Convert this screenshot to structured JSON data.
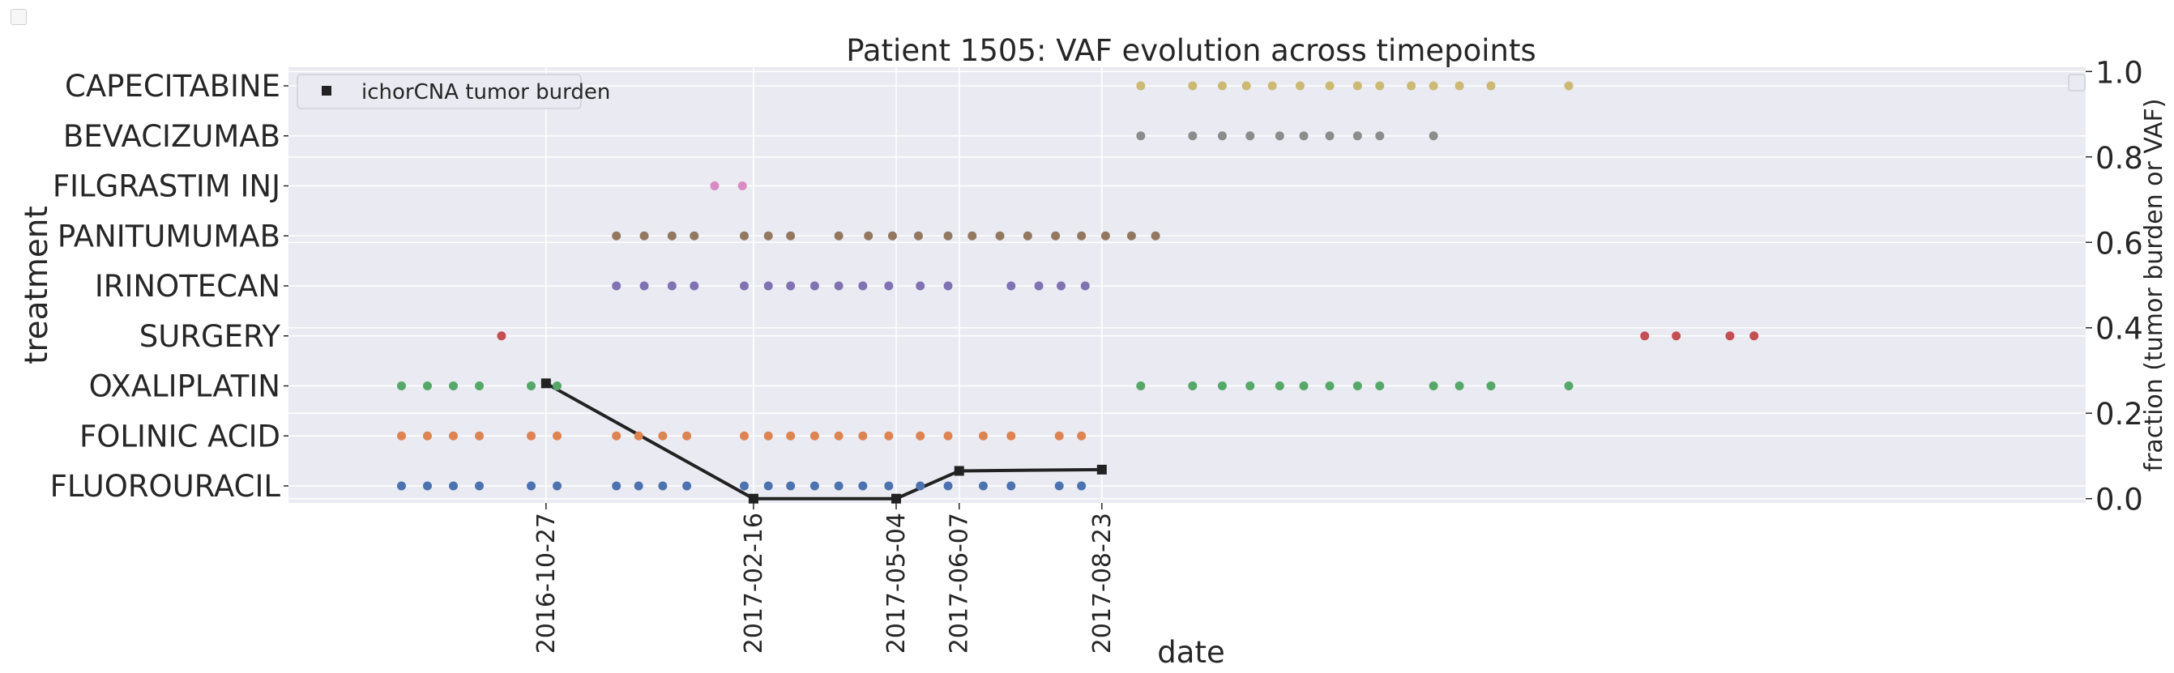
{
  "chart_data": {
    "type": "scatter",
    "title": "Patient 1505: VAF evolution across timepoints",
    "xlabel": "date",
    "ylabel": "treatment",
    "y2label": "fraction (tumor burden or VAF)",
    "xlim": [
      "2016-06-10",
      "2019-02-05"
    ],
    "y2lim": [
      -0.01,
      1.01
    ],
    "y2ticks": [
      "0.0",
      "0.2",
      "0.4",
      "0.6",
      "0.8",
      "1.0"
    ],
    "grid": true,
    "legend_position": "upper left",
    "xticks": [
      {
        "date": "2016-10-27",
        "label": "2016-10-27"
      },
      {
        "date": "2017-02-16",
        "label": "2017-02-16"
      },
      {
        "date": "2017-05-04",
        "label": "2017-05-04"
      },
      {
        "date": "2017-06-07",
        "label": "2017-06-07"
      },
      {
        "date": "2017-08-23",
        "label": "2017-08-23"
      }
    ],
    "categories": [
      "FLUOROURACIL",
      "FOLINIC ACID",
      "OXALIPLATIN",
      "SURGERY",
      "IRINOTECAN",
      "PANITUMUMAB",
      "FILGRASTIM INJ",
      "BEVACIZUMAB",
      "CAPECITABINE"
    ],
    "treatments": [
      {
        "name": "FLUOROURACIL",
        "color": "#4c72b0",
        "dates": [
          "2016-08-10",
          "2016-08-24",
          "2016-09-07",
          "2016-09-21",
          "2016-10-19",
          "2016-11-02",
          "2016-12-04",
          "2016-12-16",
          "2016-12-29",
          "2017-01-11",
          "2017-02-11",
          "2017-02-24",
          "2017-03-08",
          "2017-03-21",
          "2017-04-03",
          "2017-04-16",
          "2017-04-30",
          "2017-05-17",
          "2017-06-01",
          "2017-06-20",
          "2017-07-05",
          "2017-07-31",
          "2017-08-12"
        ]
      },
      {
        "name": "FOLINIC ACID",
        "color": "#dd8452",
        "dates": [
          "2016-08-10",
          "2016-08-24",
          "2016-09-07",
          "2016-09-21",
          "2016-10-19",
          "2016-11-02",
          "2016-12-04",
          "2016-12-16",
          "2016-12-29",
          "2017-01-11",
          "2017-02-11",
          "2017-02-24",
          "2017-03-08",
          "2017-03-21",
          "2017-04-03",
          "2017-04-16",
          "2017-04-30",
          "2017-05-17",
          "2017-06-01",
          "2017-06-20",
          "2017-07-05",
          "2017-07-31",
          "2017-08-12"
        ]
      },
      {
        "name": "OXALIPLATIN",
        "color": "#55a868",
        "dates": [
          "2016-08-10",
          "2016-08-24",
          "2016-09-07",
          "2016-09-21",
          "2016-10-19",
          "2016-11-02",
          "2017-09-13",
          "2017-10-11",
          "2017-10-27",
          "2017-11-11",
          "2017-11-27",
          "2017-12-10",
          "2017-12-24",
          "2018-01-08",
          "2018-01-20",
          "2018-02-18",
          "2018-03-04",
          "2018-03-21",
          "2018-05-02"
        ]
      },
      {
        "name": "SURGERY",
        "color": "#c44e52",
        "dates": [
          "2016-10-03",
          "2018-06-12",
          "2018-06-29",
          "2018-07-28",
          "2018-08-10"
        ]
      },
      {
        "name": "IRINOTECAN",
        "color": "#8172b3",
        "dates": [
          "2016-12-04",
          "2016-12-19",
          "2017-01-03",
          "2017-01-15",
          "2017-02-11",
          "2017-02-24",
          "2017-03-08",
          "2017-03-21",
          "2017-04-03",
          "2017-04-16",
          "2017-04-30",
          "2017-05-17",
          "2017-06-01",
          "2017-07-05",
          "2017-07-20",
          "2017-08-01",
          "2017-08-14"
        ]
      },
      {
        "name": "PANITUMUMAB",
        "color": "#937860",
        "dates": [
          "2016-12-04",
          "2016-12-19",
          "2017-01-03",
          "2017-01-15",
          "2017-02-11",
          "2017-02-24",
          "2017-03-08",
          "2017-04-03",
          "2017-04-19",
          "2017-05-02",
          "2017-05-16",
          "2017-06-01",
          "2017-06-14",
          "2017-06-29",
          "2017-07-14",
          "2017-07-29",
          "2017-08-12",
          "2017-08-25",
          "2017-09-08",
          "2017-09-21"
        ]
      },
      {
        "name": "FILGRASTIM INJ",
        "color": "#da8bc3",
        "dates": [
          "2017-01-26",
          "2017-02-10"
        ]
      },
      {
        "name": "BEVACIZUMAB",
        "color": "#8c8c8c",
        "dates": [
          "2017-09-13",
          "2017-10-11",
          "2017-10-27",
          "2017-11-11",
          "2017-11-27",
          "2017-12-10",
          "2017-12-24",
          "2018-01-08",
          "2018-01-20",
          "2018-02-18"
        ]
      },
      {
        "name": "CAPECITABINE",
        "color": "#ccb974",
        "dates": [
          "2017-09-13",
          "2017-10-11",
          "2017-10-27",
          "2017-11-09",
          "2017-11-23",
          "2017-12-08",
          "2017-12-24",
          "2018-01-08",
          "2018-01-20",
          "2018-02-06",
          "2018-02-18",
          "2018-03-04",
          "2018-03-21",
          "2018-05-02"
        ]
      }
    ],
    "series": [
      {
        "name": "ichorCNA tumor burden",
        "color": "#222222",
        "x": [
          "2016-10-27",
          "2017-02-16",
          "2017-05-04",
          "2017-06-07",
          "2017-08-23"
        ],
        "y": [
          0.27,
          0.0,
          0.0,
          0.065,
          0.068
        ]
      }
    ],
    "legend": [
      {
        "label": "ichorCNA tumor burden",
        "marker": "square",
        "color": "#222222"
      }
    ]
  }
}
